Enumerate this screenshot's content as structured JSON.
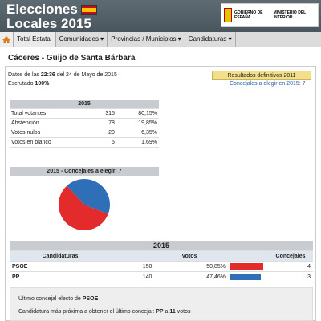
{
  "header": {
    "title_line1": "Elecciones",
    "title_line2": "Locales 2015",
    "gov_left": "GOBIERNO DE ESPAÑA",
    "gov_right": "MINISTERIO DEL INTERIOR"
  },
  "nav": {
    "items": [
      {
        "label": "Total Estatal"
      },
      {
        "label": "Comunidades ▾"
      },
      {
        "label": "Provincias / Municipios ▾"
      },
      {
        "label": "Candidaturas ▾"
      }
    ]
  },
  "place": "Cáceres - Guijo de Santa Bárbara",
  "info": {
    "date_prefix": "Datos de las",
    "time": "22:36",
    "date_suffix": "del 24 de Mayo de 2015",
    "escrutado_label": "Escrutado",
    "escrutado_value": "100%"
  },
  "results_button": "Resultados definitivos 2011",
  "concejales_top": "Concejales a elegir en 2015: 7",
  "summary": {
    "year": "2015",
    "rows": [
      {
        "label": "Total votantes",
        "count": "315",
        "pct": "80,15%"
      },
      {
        "label": "Abstención",
        "count": "78",
        "pct": "19,85%"
      },
      {
        "label": "Votos nulos",
        "count": "20",
        "pct": "6,35%"
      },
      {
        "label": "Votos en blanco",
        "count": "5",
        "pct": "1,69%"
      }
    ]
  },
  "pie_header": "2015 - Concejales a elegir: 7",
  "chart_data": {
    "type": "pie",
    "categories": [
      "PSOE",
      "PP"
    ],
    "values": [
      4,
      3
    ],
    "colors": [
      "#e32b2b",
      "#2f6fb8"
    ]
  },
  "results": {
    "year": "2015",
    "col_cand": "Candidaturas",
    "col_votes": "Votos",
    "col_conc": "Concejales",
    "rows": [
      {
        "name": "PSOE",
        "votes": "150",
        "pct": "50,85%",
        "pct_value": 50.85,
        "concejales": "4",
        "color": "#e32b2b"
      },
      {
        "name": "PP",
        "votes": "140",
        "pct": "47,46%",
        "pct_value": 47.46,
        "concejales": "3",
        "color": "#2f6fb8"
      }
    ]
  },
  "bottom": {
    "line1_prefix": "Último concejal electo de",
    "line1_party": "PSOE",
    "line2_prefix": "Candidatura más próxima a obtener el último concejal:",
    "line2_party": "PP",
    "line2_mid": "a",
    "line2_votes": "11",
    "line2_suffix": "votos"
  }
}
